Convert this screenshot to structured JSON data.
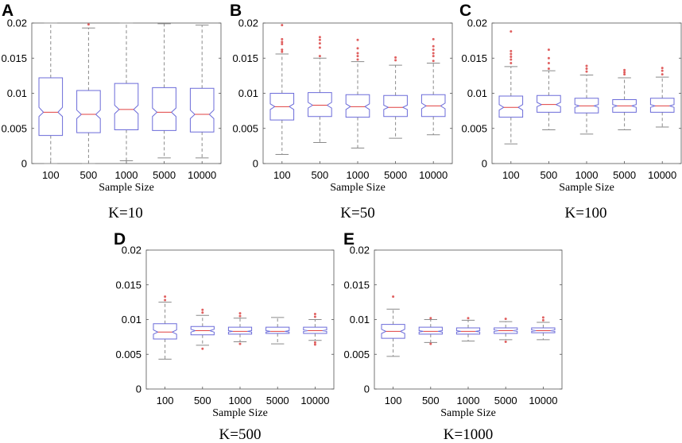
{
  "figure": {
    "k_labels": [
      "K=10",
      "K=50",
      "K=100",
      "K=500",
      "K=1000"
    ]
  },
  "colors": {
    "box": "#6b6bd9",
    "median": "#e04040",
    "whisker": "#8a8a8a",
    "outlier": "#e06060",
    "axis": "#555555"
  },
  "chart_data": [
    {
      "panel": "A",
      "k_label": "K=10",
      "type": "boxplot-notched",
      "xlabel": "Sample Size",
      "ylabel": "",
      "ylim": [
        0,
        0.02
      ],
      "ytick_labels": [
        "0",
        "0.005",
        "0.01",
        "0.015",
        "0.02"
      ],
      "categories": [
        "100",
        "500",
        "1000",
        "5000",
        "10000"
      ],
      "boxes": [
        {
          "whisker_low": 0.0,
          "q1": 0.004,
          "notch_low": 0.0067,
          "median": 0.0073,
          "notch_high": 0.008,
          "q3": 0.0122,
          "whisker_high": 0.02,
          "outliers": []
        },
        {
          "whisker_low": 0.0,
          "q1": 0.0044,
          "notch_low": 0.0064,
          "median": 0.007,
          "notch_high": 0.0076,
          "q3": 0.0104,
          "whisker_high": 0.0193,
          "outliers": [
            0.0198
          ]
        },
        {
          "whisker_low": 0.0004,
          "q1": 0.0048,
          "notch_low": 0.0071,
          "median": 0.0077,
          "notch_high": 0.0083,
          "q3": 0.0114,
          "whisker_high": 0.02,
          "outliers": []
        },
        {
          "whisker_low": 0.0008,
          "q1": 0.0047,
          "notch_low": 0.0067,
          "median": 0.0073,
          "notch_high": 0.0079,
          "q3": 0.0108,
          "whisker_high": 0.0199,
          "outliers": []
        },
        {
          "whisker_low": 0.0008,
          "q1": 0.0045,
          "notch_low": 0.0064,
          "median": 0.007,
          "notch_high": 0.0076,
          "q3": 0.0107,
          "whisker_high": 0.0197,
          "outliers": []
        }
      ]
    },
    {
      "panel": "B",
      "k_label": "K=50",
      "type": "boxplot-notched",
      "xlabel": "Sample Size",
      "ylabel": "",
      "ylim": [
        0,
        0.02
      ],
      "ytick_labels": [
        "0",
        "0.005",
        "0.01",
        "0.015",
        "0.02"
      ],
      "categories": [
        "100",
        "500",
        "1000",
        "5000",
        "10000"
      ],
      "boxes": [
        {
          "whisker_low": 0.0013,
          "q1": 0.0062,
          "notch_low": 0.0077,
          "median": 0.0081,
          "notch_high": 0.0085,
          "q3": 0.01,
          "whisker_high": 0.0156,
          "outliers": [
            0.0159,
            0.0162,
            0.017,
            0.0173,
            0.0177,
            0.0197
          ]
        },
        {
          "whisker_low": 0.003,
          "q1": 0.0067,
          "notch_low": 0.0079,
          "median": 0.0083,
          "notch_high": 0.0087,
          "q3": 0.0101,
          "whisker_high": 0.015,
          "outliers": [
            0.0153,
            0.0165,
            0.0171,
            0.0176,
            0.018
          ]
        },
        {
          "whisker_low": 0.0022,
          "q1": 0.0066,
          "notch_low": 0.0077,
          "median": 0.0081,
          "notch_high": 0.0085,
          "q3": 0.0098,
          "whisker_high": 0.0145,
          "outliers": [
            0.0148,
            0.0153,
            0.0157,
            0.0164,
            0.0176
          ]
        },
        {
          "whisker_low": 0.0036,
          "q1": 0.0067,
          "notch_low": 0.0077,
          "median": 0.008,
          "notch_high": 0.0083,
          "q3": 0.0097,
          "whisker_high": 0.014,
          "outliers": [
            0.0147,
            0.0151
          ]
        },
        {
          "whisker_low": 0.0041,
          "q1": 0.0067,
          "notch_low": 0.0078,
          "median": 0.0082,
          "notch_high": 0.0086,
          "q3": 0.0098,
          "whisker_high": 0.0143,
          "outliers": [
            0.0146,
            0.0153,
            0.0157,
            0.0162,
            0.0167,
            0.0177
          ]
        }
      ]
    },
    {
      "panel": "C",
      "k_label": "K=100",
      "type": "boxplot-notched",
      "xlabel": "Sample Size",
      "ylabel": "",
      "ylim": [
        0,
        0.02
      ],
      "ytick_labels": [
        "0",
        "0.005",
        "0.01",
        "0.015",
        "0.02"
      ],
      "categories": [
        "100",
        "500",
        "1000",
        "5000",
        "10000"
      ],
      "boxes": [
        {
          "whisker_low": 0.0028,
          "q1": 0.0066,
          "notch_low": 0.0076,
          "median": 0.008,
          "notch_high": 0.0084,
          "q3": 0.0096,
          "whisker_high": 0.0138,
          "outliers": [
            0.0143,
            0.0148,
            0.0152,
            0.0156,
            0.016,
            0.0188
          ]
        },
        {
          "whisker_low": 0.0048,
          "q1": 0.0073,
          "notch_low": 0.0081,
          "median": 0.0084,
          "notch_high": 0.0087,
          "q3": 0.0097,
          "whisker_high": 0.0132,
          "outliers": [
            0.0135,
            0.0143,
            0.015,
            0.0162
          ]
        },
        {
          "whisker_low": 0.0042,
          "q1": 0.0072,
          "notch_low": 0.008,
          "median": 0.0082,
          "notch_high": 0.0084,
          "q3": 0.0093,
          "whisker_high": 0.0126,
          "outliers": [
            0.0131,
            0.0135,
            0.0139
          ]
        },
        {
          "whisker_low": 0.0048,
          "q1": 0.0073,
          "notch_low": 0.008,
          "median": 0.0082,
          "notch_high": 0.0084,
          "q3": 0.0091,
          "whisker_high": 0.0122,
          "outliers": [
            0.0127,
            0.013,
            0.0133
          ]
        },
        {
          "whisker_low": 0.0052,
          "q1": 0.0073,
          "notch_low": 0.008,
          "median": 0.0082,
          "notch_high": 0.0084,
          "q3": 0.0093,
          "whisker_high": 0.0123,
          "outliers": [
            0.0127,
            0.0132,
            0.0136
          ]
        }
      ]
    },
    {
      "panel": "D",
      "k_label": "K=500",
      "type": "boxplot-notched",
      "xlabel": "Sample Size",
      "ylabel": "",
      "ylim": [
        0,
        0.02
      ],
      "ytick_labels": [
        "0",
        "0.005",
        "0.01",
        "0.015",
        "0.02"
      ],
      "categories": [
        "100",
        "500",
        "1000",
        "5000",
        "10000"
      ],
      "boxes": [
        {
          "whisker_low": 0.0043,
          "q1": 0.0072,
          "notch_low": 0.0079,
          "median": 0.0082,
          "notch_high": 0.0085,
          "q3": 0.0094,
          "whisker_high": 0.0125,
          "outliers": [
            0.0128,
            0.0133
          ]
        },
        {
          "whisker_low": 0.0063,
          "q1": 0.0078,
          "notch_low": 0.0082,
          "median": 0.0084,
          "notch_high": 0.0086,
          "q3": 0.009,
          "whisker_high": 0.0106,
          "outliers": [
            0.0058,
            0.011,
            0.0114
          ]
        },
        {
          "whisker_low": 0.0068,
          "q1": 0.0079,
          "notch_low": 0.0082,
          "median": 0.0083,
          "notch_high": 0.0084,
          "q3": 0.0089,
          "whisker_high": 0.0102,
          "outliers": [
            0.0065,
            0.0105,
            0.0109
          ]
        },
        {
          "whisker_low": 0.0065,
          "q1": 0.008,
          "notch_low": 0.0082,
          "median": 0.0083,
          "notch_high": 0.0084,
          "q3": 0.0089,
          "whisker_high": 0.0103,
          "outliers": []
        },
        {
          "whisker_low": 0.007,
          "q1": 0.008,
          "notch_low": 0.0083,
          "median": 0.0084,
          "notch_high": 0.0085,
          "q3": 0.0089,
          "whisker_high": 0.01,
          "outliers": [
            0.0064,
            0.0067,
            0.0104,
            0.0108
          ]
        }
      ]
    },
    {
      "panel": "E",
      "k_label": "K=1000",
      "type": "boxplot-notched",
      "xlabel": "Sample Size",
      "ylabel": "",
      "ylim": [
        0,
        0.02
      ],
      "ytick_labels": [
        "0",
        "0.005",
        "0.01",
        "0.015",
        "0.02"
      ],
      "categories": [
        "100",
        "500",
        "1000",
        "5000",
        "10000"
      ],
      "boxes": [
        {
          "whisker_low": 0.0047,
          "q1": 0.0073,
          "notch_low": 0.008,
          "median": 0.0083,
          "notch_high": 0.0086,
          "q3": 0.0093,
          "whisker_high": 0.0115,
          "outliers": [
            0.0133
          ]
        },
        {
          "whisker_low": 0.0067,
          "q1": 0.0079,
          "notch_low": 0.0082,
          "median": 0.0083,
          "notch_high": 0.0084,
          "q3": 0.0089,
          "whisker_high": 0.01,
          "outliers": [
            0.0065,
            0.0102
          ]
        },
        {
          "whisker_low": 0.0069,
          "q1": 0.0079,
          "notch_low": 0.0082,
          "median": 0.0083,
          "notch_high": 0.0084,
          "q3": 0.0088,
          "whisker_high": 0.0099,
          "outliers": [
            0.0102
          ]
        },
        {
          "whisker_low": 0.0071,
          "q1": 0.008,
          "notch_low": 0.0083,
          "median": 0.0084,
          "notch_high": 0.0085,
          "q3": 0.0088,
          "whisker_high": 0.0097,
          "outliers": [
            0.0068,
            0.0101
          ]
        },
        {
          "whisker_low": 0.0071,
          "q1": 0.0081,
          "notch_low": 0.0083,
          "median": 0.0084,
          "notch_high": 0.0085,
          "q3": 0.0088,
          "whisker_high": 0.0096,
          "outliers": [
            0.0099,
            0.0103
          ]
        }
      ]
    }
  ]
}
